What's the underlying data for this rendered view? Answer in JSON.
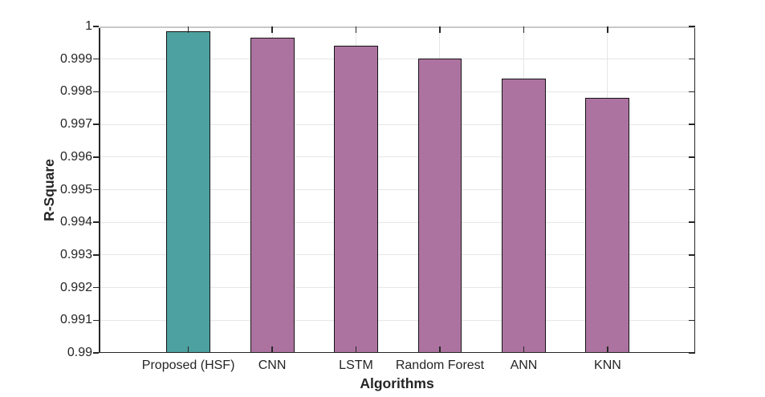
{
  "chart_data": {
    "type": "bar",
    "title": "",
    "xlabel": "Algorithms",
    "ylabel": "R-Square",
    "categories": [
      "Proposed (HSF)",
      "CNN",
      "LSTM",
      "Random Forest",
      "ANN",
      "KNN"
    ],
    "values": [
      0.99985,
      0.99966,
      0.99941,
      0.99902,
      0.9984,
      0.99781
    ],
    "ylim": [
      0.99,
      1.0
    ],
    "ytick_step": 0.001,
    "ytick_labels": [
      "0.99",
      "0.991",
      "0.992",
      "0.993",
      "0.994",
      "0.995",
      "0.996",
      "0.997",
      "0.998",
      "0.999",
      "1"
    ],
    "grid": true,
    "legend": null,
    "colors": {
      "bar_fills": [
        "#4DA1A0",
        "#AD73A0",
        "#AD73A0",
        "#AD73A0",
        "#AD73A0",
        "#AD73A0"
      ],
      "bar_edge": "#141414",
      "grid_line": "#e6e6e6",
      "axis_line": "#262626",
      "top_border": "#c8c8c8",
      "text": "#252525",
      "background": "#ffffff"
    }
  }
}
